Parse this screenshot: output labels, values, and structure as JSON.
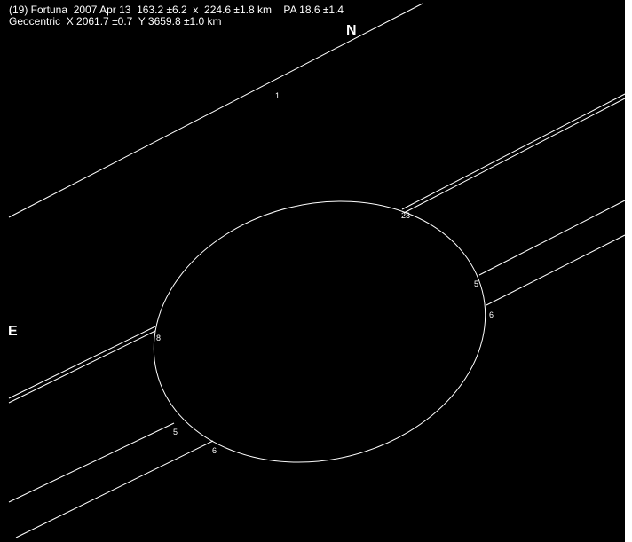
{
  "header": {
    "line1": "(19) Fortuna  2007 Apr 13  163.2 ±6.2  x  224.6 ±1.8 km    PA 18.6 ±1.4",
    "line2": "Geocentric  X 2061.7 ±0.7  Y 3659.8 ±1.0 km"
  },
  "compass": {
    "north": "N",
    "east": "E"
  },
  "chords": {
    "labels": [
      "1",
      "23",
      "5",
      "6",
      "8",
      "5",
      "6"
    ]
  }
}
